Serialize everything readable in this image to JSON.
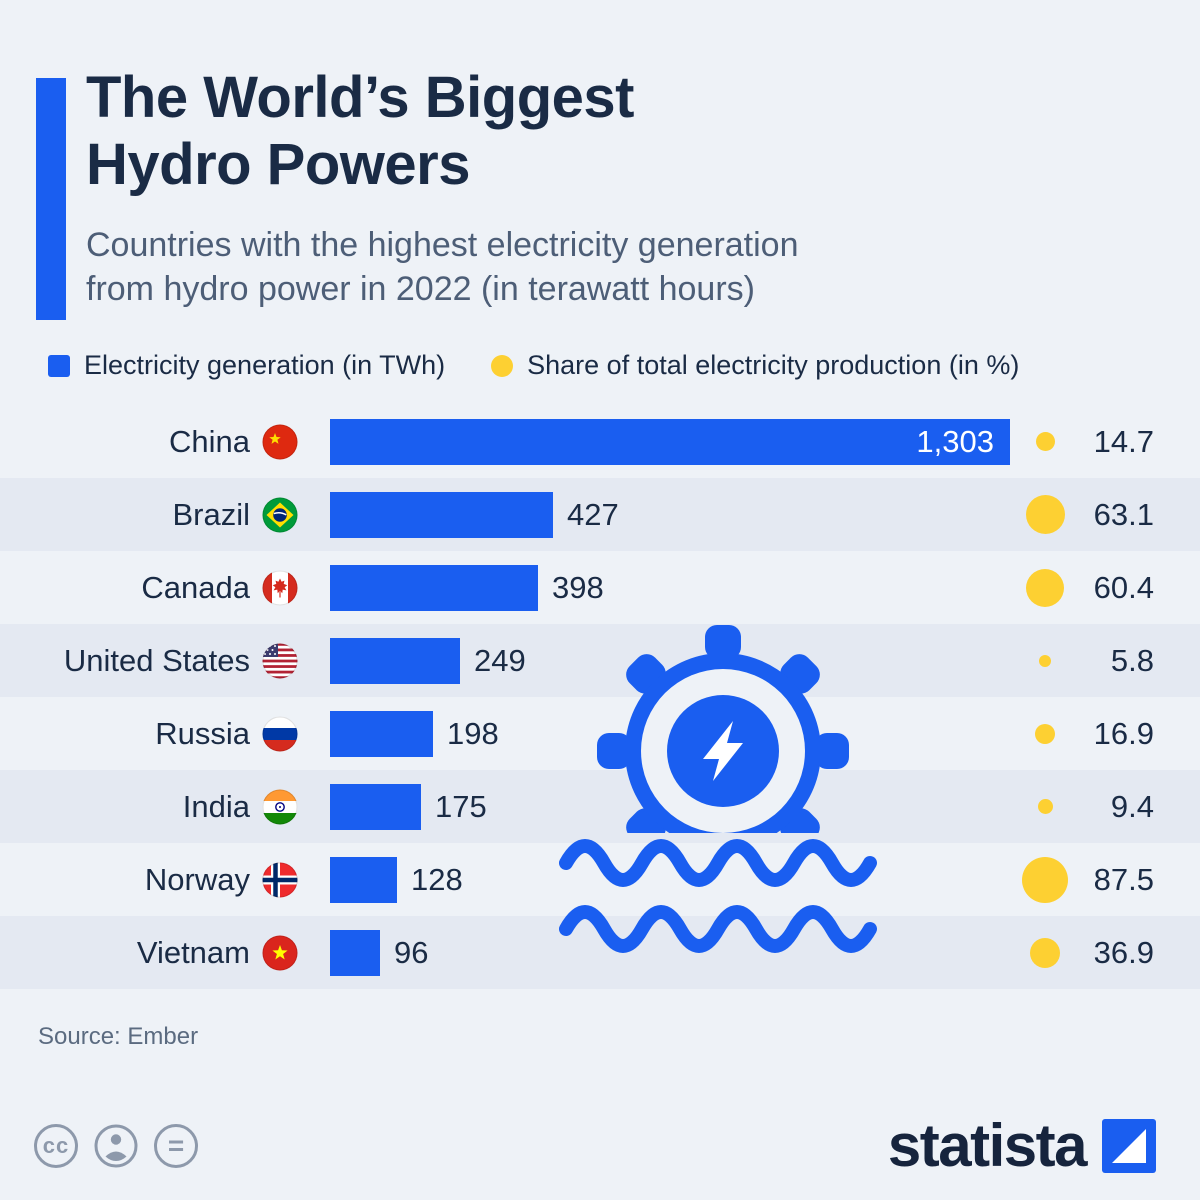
{
  "header": {
    "title_lines": [
      "The World’s Biggest",
      "Hydro Powers"
    ],
    "subtitle_lines": [
      "Countries with the highest electricity generation",
      "from hydro power in 2022 (in terawatt hours)"
    ],
    "accent_color": "#1a5ef0"
  },
  "chart_data": {
    "type": "bar",
    "orientation": "horizontal",
    "title": "The World’s Biggest Hydro Powers",
    "subtitle": "Countries with the highest electricity generation from hydro power in 2022 (in terawatt hours)",
    "categories": [
      "China",
      "Brazil",
      "Canada",
      "United States",
      "Russia",
      "India",
      "Norway",
      "Vietnam"
    ],
    "series": [
      {
        "name": "Electricity generation (in TWh)",
        "values": [
          1303,
          427,
          398,
          249,
          198,
          175,
          128,
          96
        ]
      },
      {
        "name": "Share of total electricity production (in %)",
        "values": [
          14.7,
          63.1,
          60.4,
          5.8,
          16.9,
          9.4,
          87.5,
          36.9
        ]
      }
    ],
    "value_labels": [
      "1,303",
      "427",
      "398",
      "249",
      "198",
      "175",
      "128",
      "96"
    ],
    "share_labels": [
      "14.7",
      "63.1",
      "60.4",
      "5.8",
      "16.9",
      "9.4",
      "87.5",
      "36.9"
    ],
    "flags": [
      "china",
      "brazil",
      "canada",
      "usa",
      "russia",
      "india",
      "norway",
      "vietnam"
    ],
    "xlim": [
      0,
      1303
    ],
    "bar_color": "#1a5ef0",
    "dot_color": "#fdd032",
    "legend_position": "top",
    "grid": false
  },
  "footer": {
    "source": "Source: Ember",
    "logo_text": "statista",
    "badges": [
      {
        "icon": "creative-commons-icon",
        "glyph": "cc"
      },
      {
        "icon": "attribution-person-icon",
        "glyph": "person"
      },
      {
        "icon": "equals-icon",
        "glyph": "="
      }
    ]
  },
  "colors": {
    "background": "#eef2f7",
    "row_stripe": "#e4e9f2",
    "bar_blue": "#1a5ef0",
    "dot_yellow": "#fdd032",
    "title_navy": "#1a2b45",
    "subtitle_gray": "#4d5e77"
  }
}
